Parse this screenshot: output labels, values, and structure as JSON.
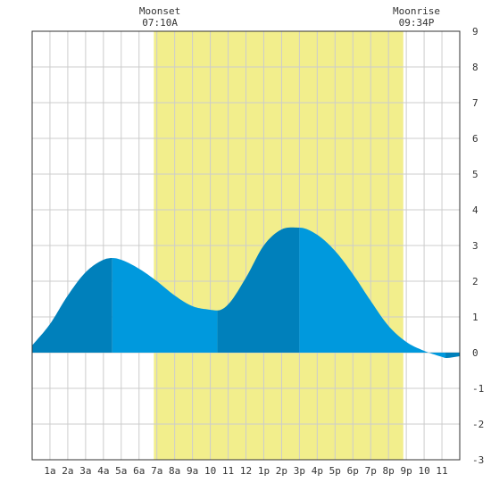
{
  "chart_data": {
    "type": "area",
    "x_unit": "hour of day",
    "x_range": [
      0,
      24
    ],
    "ylim": [
      -3,
      9
    ],
    "y_ticks": [
      -3,
      -2,
      -1,
      0,
      1,
      2,
      3,
      4,
      5,
      6,
      7,
      8,
      9
    ],
    "x_tick_labels": [
      "1a",
      "2a",
      "3a",
      "4a",
      "5a",
      "6a",
      "7a",
      "8a",
      "9a",
      "10",
      "11",
      "12",
      "1p",
      "2p",
      "3p",
      "4p",
      "5p",
      "6p",
      "7p",
      "8p",
      "9p",
      "10",
      "11"
    ],
    "grid": true,
    "moon_up_interval_hours": [
      6.83,
      20.83
    ],
    "moon_events": [
      {
        "name": "Moonset",
        "time": "07:10A",
        "hour": 7.17
      },
      {
        "name": "Moonrise",
        "time": "09:34P",
        "hour": 21.57
      }
    ],
    "tide_extremes": [
      {
        "hour": 4.5,
        "height": 2.65,
        "kind": "high"
      },
      {
        "hour": 10.4,
        "height": 1.18,
        "kind": "low"
      },
      {
        "hour": 15.0,
        "height": 3.5,
        "kind": "high"
      },
      {
        "hour": 23.2,
        "height": -0.15,
        "kind": "low"
      }
    ],
    "series": [
      {
        "x": [
          0,
          1,
          2,
          3,
          4,
          4.5,
          5,
          6,
          7,
          8,
          9,
          10,
          10.4,
          11,
          12,
          13,
          14,
          15,
          16,
          17,
          18,
          19,
          20,
          21,
          22,
          23,
          23.2,
          24
        ],
        "values": [
          0.2,
          0.8,
          1.6,
          2.25,
          2.6,
          2.65,
          2.6,
          2.35,
          2.0,
          1.6,
          1.3,
          1.2,
          1.18,
          1.35,
          2.1,
          3.0,
          3.45,
          3.5,
          3.3,
          2.85,
          2.2,
          1.45,
          0.75,
          0.3,
          0.05,
          -0.12,
          -0.15,
          -0.1
        ]
      }
    ],
    "colors": {
      "moon_band": "#f2ee8c",
      "tide_light": "#0099dd",
      "tide_dark": "#0080bb",
      "grid": "#cccccc"
    }
  }
}
